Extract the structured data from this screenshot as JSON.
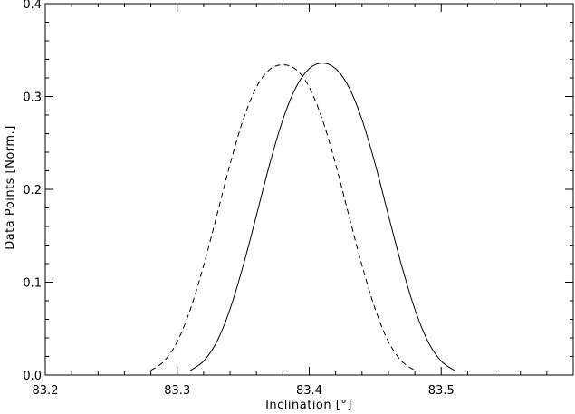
{
  "chart_data": {
    "type": "line",
    "title": "",
    "xlabel": "Inclination [°]",
    "ylabel": "Data Points [Norm.]",
    "xlim": [
      83.2,
      83.6
    ],
    "ylim": [
      0.0,
      0.4
    ],
    "x_ticks": [
      83.2,
      83.3,
      83.4,
      83.5
    ],
    "x_tick_labels": [
      "83.2",
      "83.3",
      "83.4",
      "83.5"
    ],
    "y_ticks": [
      0.0,
      0.1,
      0.2,
      0.3,
      0.4
    ],
    "y_tick_labels": [
      "0.0",
      "0.1",
      "0.2",
      "0.3",
      "0.4"
    ],
    "grid": false,
    "legend": "none",
    "series": [
      {
        "style": "solid",
        "color": "#000000",
        "x": [
          83.31,
          83.32,
          83.33,
          83.34,
          83.35,
          83.36,
          83.37,
          83.38,
          83.39,
          83.4,
          83.41,
          83.42,
          83.43,
          83.44,
          83.45,
          83.46,
          83.47,
          83.48,
          83.49,
          83.5,
          83.51
        ],
        "y": [
          0.005,
          0.015,
          0.036,
          0.071,
          0.118,
          0.172,
          0.227,
          0.275,
          0.31,
          0.33,
          0.336,
          0.33,
          0.31,
          0.275,
          0.227,
          0.172,
          0.118,
          0.071,
          0.036,
          0.015,
          0.005
        ]
      },
      {
        "style": "dashed",
        "color": "#000000",
        "x": [
          83.28,
          83.29,
          83.3,
          83.31,
          83.32,
          83.33,
          83.34,
          83.35,
          83.36,
          83.37,
          83.38,
          83.39,
          83.4,
          83.41,
          83.42,
          83.43,
          83.44,
          83.45,
          83.46,
          83.47,
          83.48
        ],
        "y": [
          0.005,
          0.015,
          0.036,
          0.071,
          0.118,
          0.172,
          0.227,
          0.275,
          0.31,
          0.329,
          0.334,
          0.329,
          0.31,
          0.275,
          0.227,
          0.172,
          0.118,
          0.071,
          0.036,
          0.015,
          0.005
        ]
      }
    ]
  }
}
